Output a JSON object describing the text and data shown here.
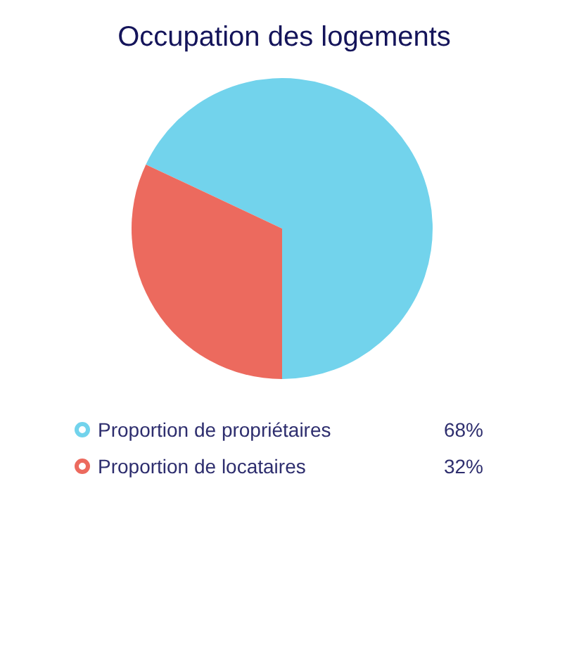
{
  "chart_data": {
    "type": "pie",
    "title": "Occupation des logements",
    "categories": [
      "Proportion de propriétaires",
      "Proportion de locataires"
    ],
    "values": [
      68,
      32
    ],
    "colors": [
      "#72d3ec",
      "#ec6a5e"
    ],
    "value_labels": [
      "68%",
      "32%"
    ],
    "legend": "bottom"
  }
}
